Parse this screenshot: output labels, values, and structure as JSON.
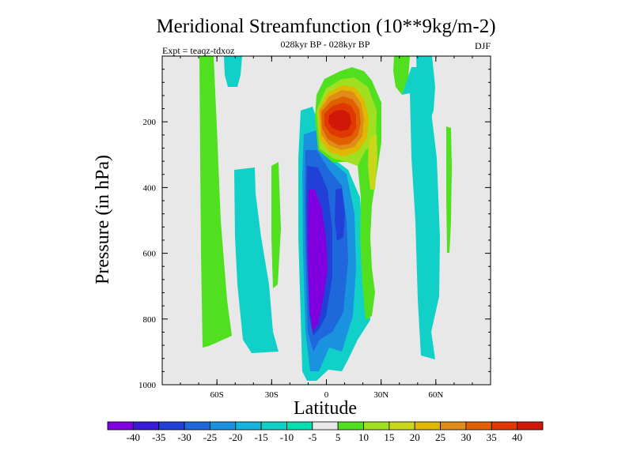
{
  "chart_data": {
    "type": "contour",
    "title": "Meridional Streamfunction (10**9kg/m-2)",
    "subtitle": "028kyr BP - 028kyr BP",
    "left_label": "Expt = teaqz-tdxoz",
    "right_label": "DJF",
    "xlabel": "Latitude",
    "ylabel": "Pressure (in hPa)",
    "xlim": [
      -90,
      90
    ],
    "ylim": [
      1000,
      0
    ],
    "x_ticks": [
      {
        "value": -60,
        "label": "60S"
      },
      {
        "value": -30,
        "label": "30S"
      },
      {
        "value": 0,
        "label": "0"
      },
      {
        "value": 30,
        "label": "30N"
      },
      {
        "value": 60,
        "label": "60N"
      }
    ],
    "y_ticks": [
      {
        "value": 200,
        "label": "200"
      },
      {
        "value": 400,
        "label": "400"
      },
      {
        "value": 600,
        "label": "600"
      },
      {
        "value": 800,
        "label": "800"
      },
      {
        "value": 1000,
        "label": "1000"
      }
    ],
    "colorbar": {
      "labels": [
        "-40",
        "-35",
        "-30",
        "-25",
        "-20",
        "-15",
        "-10",
        "-5",
        "5",
        "10",
        "15",
        "20",
        "25",
        "30",
        "35",
        "40"
      ],
      "colors": [
        "#8000e0",
        "#3a1ad8",
        "#2040d8",
        "#1e68dc",
        "#1a92e0",
        "#14b4dc",
        "#10d0c8",
        "#00e0b0",
        "#e8e8e8",
        "#50e020",
        "#a0e020",
        "#c8d818",
        "#e0b800",
        "#e08c18",
        "#e06000",
        "#e03800",
        "#d01808"
      ]
    },
    "features": [
      {
        "name": "southern-ascending-cell",
        "value": -40,
        "lat_range": [
          -10,
          0
        ],
        "pressure_range": [
          260,
          980
        ]
      },
      {
        "name": "upper-tropical-positive-cell",
        "value": 40,
        "lat_range": [
          0,
          10
        ],
        "pressure_range": [
          170,
          230
        ]
      },
      {
        "name": "southern-midlat-band",
        "value": 10,
        "lat_range": [
          -70,
          -65
        ],
        "pressure_range": [
          0,
          900
        ]
      },
      {
        "name": "northern-midlat-band",
        "value": -10,
        "lat_range": [
          50,
          60
        ],
        "pressure_range": [
          0,
          950
        ]
      }
    ]
  }
}
